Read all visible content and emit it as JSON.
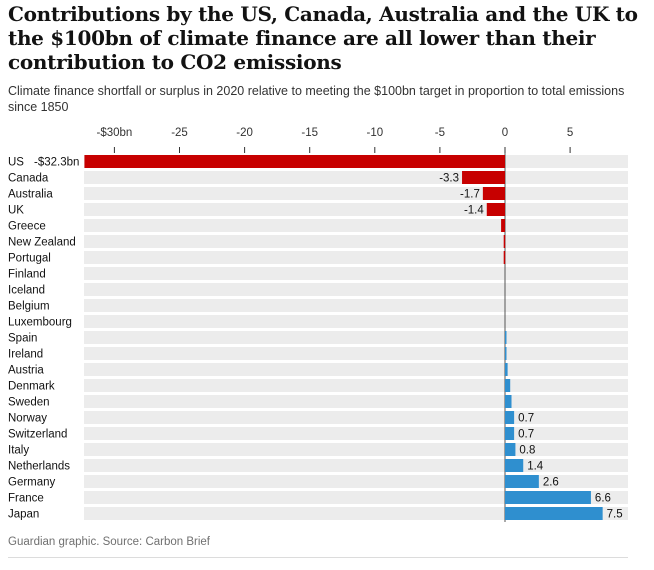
{
  "header": {
    "title": "Contributions by the US, Canada, Australia and the UK to the $100bn of climate finance are all lower than their contribution to CO2 emissions",
    "subtitle": "Climate finance shortfall or surplus in 2020 relative to meeting the $100bn target in proportion to total emissions since 1850"
  },
  "footer": {
    "source": "Guardian graphic. Source: Carbon Brief"
  },
  "colors": {
    "negative": "#c70000",
    "positive": "#2f8fcf",
    "row_background": "#ececec",
    "tick": "#333333",
    "zero_line": "#555555"
  },
  "chart_data": {
    "type": "bar",
    "orientation": "horizontal",
    "title": "Contributions by the US, Canada, Australia and the UK to the $100bn of climate finance are all lower than their contribution to CO2 emissions",
    "subtitle": "Climate finance shortfall or surplus in 2020 relative to meeting the $100bn target in proportion to total emissions since 1850",
    "xlabel": "",
    "ylabel": "",
    "unit": "$bn",
    "xlim": [
      -32.3,
      9.5
    ],
    "x_ticks": [
      -30,
      -25,
      -20,
      -15,
      -10,
      -5,
      0,
      5
    ],
    "x_tick_labels": [
      "-$30bn",
      "-25",
      "-20",
      "-15",
      "-10",
      "-5",
      "0",
      "5"
    ],
    "categories": [
      "US",
      "Canada",
      "Australia",
      "UK",
      "Greece",
      "New Zealand",
      "Portugal",
      "Finland",
      "Iceland",
      "Belgium",
      "Luxembourg",
      "Spain",
      "Ireland",
      "Austria",
      "Denmark",
      "Sweden",
      "Norway",
      "Switzerland",
      "Italy",
      "Netherlands",
      "Germany",
      "France",
      "Japan"
    ],
    "values": [
      -32.3,
      -3.3,
      -1.7,
      -1.4,
      -0.3,
      -0.1,
      -0.1,
      0,
      0,
      0,
      0,
      0.1,
      0.1,
      0.2,
      0.4,
      0.5,
      0.7,
      0.7,
      0.8,
      1.4,
      2.6,
      6.6,
      7.5
    ],
    "value_labels": [
      "-$32.3bn",
      "-3.3",
      "-1.7",
      "-1.4",
      "",
      "",
      "",
      "",
      "",
      "",
      "",
      "",
      "",
      "",
      "",
      "",
      "0.7",
      "0.7",
      "0.8",
      "1.4",
      "2.6",
      "6.6",
      "7.5"
    ],
    "source": "Guardian graphic. Source: Carbon Brief"
  }
}
